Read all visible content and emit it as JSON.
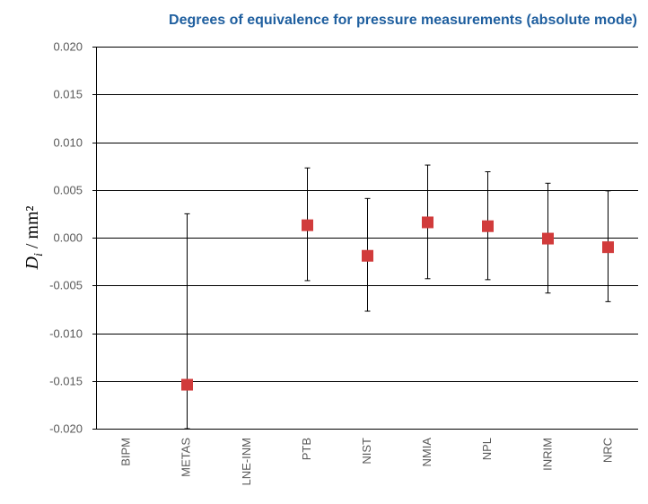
{
  "chart_data": {
    "type": "scatter",
    "title": "Degrees of equivalence for pressure measurements (absolute mode)",
    "ylabel_main": "D",
    "ylabel_sub": "i",
    "ylabel_unit": " / mm²",
    "xlabel": "",
    "ylim": [
      -0.02,
      0.02
    ],
    "yticks": [
      "0.020",
      "0.015",
      "0.010",
      "0.005",
      "0.000",
      "-0.005",
      "-0.010",
      "-0.015",
      "-0.020"
    ],
    "ytick_values": [
      0.02,
      0.015,
      0.01,
      0.005,
      0.0,
      -0.005,
      -0.01,
      -0.015,
      -0.02
    ],
    "grid": true,
    "marker_color": "#d13b3b",
    "categories": [
      "BIPM",
      "METAS",
      "LNE-INM",
      "PTB",
      "NIST",
      "NMIA",
      "NPL",
      "INRIM",
      "NRC"
    ],
    "values": [
      null,
      -0.0154,
      null,
      0.0013,
      -0.0019,
      0.0016,
      0.0012,
      -0.0001,
      -0.001
    ],
    "err_upper": [
      null,
      0.0025,
      null,
      0.0073,
      0.0041,
      0.0076,
      0.0069,
      0.0057,
      0.0049
    ],
    "err_lower": [
      null,
      -0.02,
      null,
      -0.0045,
      -0.0077,
      -0.0043,
      -0.0044,
      -0.0058,
      -0.0067
    ]
  }
}
